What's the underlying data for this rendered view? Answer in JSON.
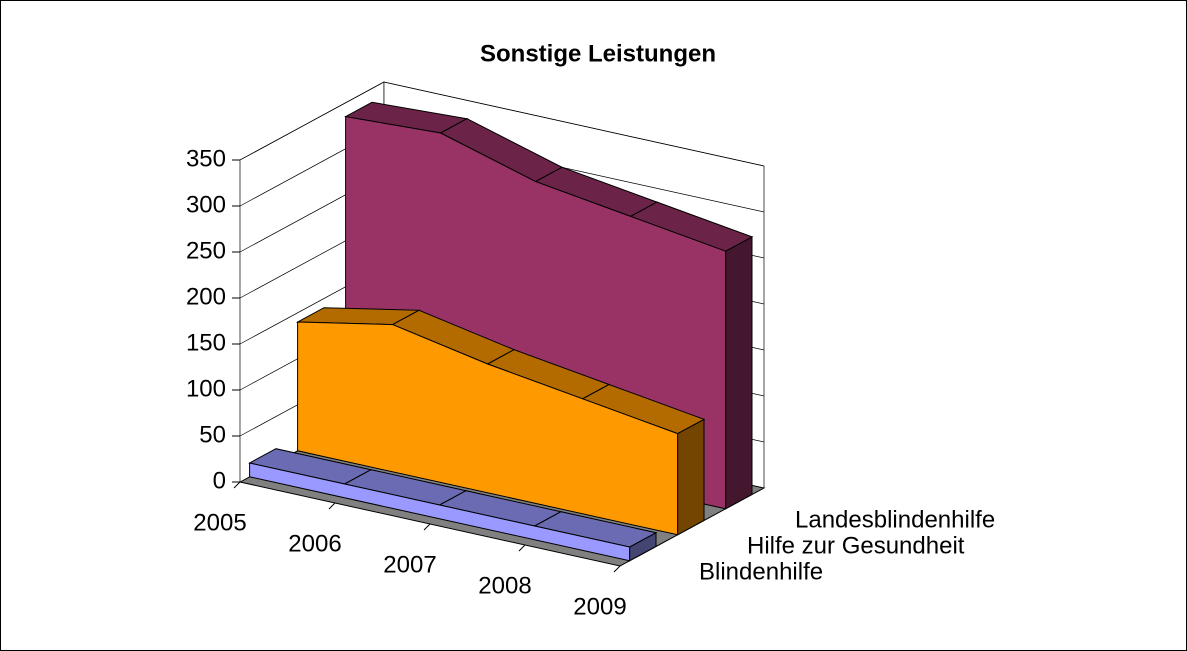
{
  "chart_data": {
    "type": "area3d",
    "title": "Sonstige Leistungen",
    "categories": [
      "2005",
      "2006",
      "2007",
      "2008",
      "2009"
    ],
    "series": [
      {
        "name": "Blindenhilfe",
        "color": "#9999ff",
        "values": [
          15,
          15,
          15,
          15,
          15
        ]
      },
      {
        "name": "Hilfe zur Gesundheit",
        "color": "#ff9900",
        "values": [
          140,
          160,
          140,
          125,
          110
        ]
      },
      {
        "name": "Landesblindenhilfe",
        "color": "#993366",
        "values": [
          335,
          340,
          310,
          295,
          280
        ]
      }
    ],
    "ylim": [
      0,
      350
    ],
    "yticks": [
      0,
      50,
      100,
      150,
      200,
      250,
      300,
      350
    ],
    "grid": true
  }
}
